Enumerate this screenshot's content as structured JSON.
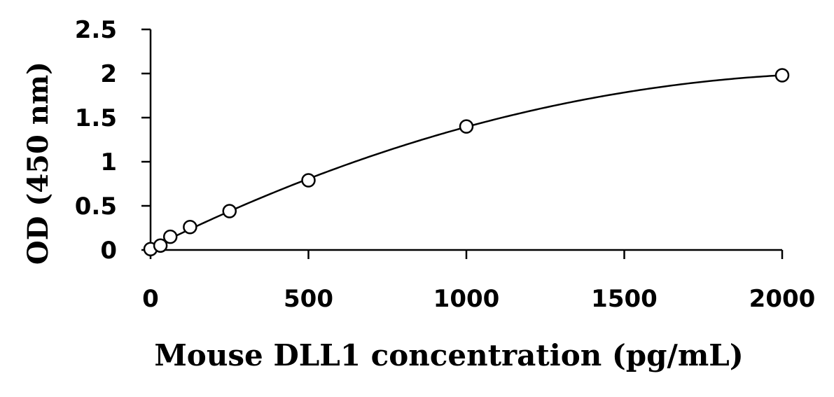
{
  "chart_data": {
    "type": "scatter",
    "title": "",
    "xlabel": "Mouse DLL1 concentration (pg/mL)",
    "ylabel": "OD (450 nm)",
    "xlim": [
      0,
      2000
    ],
    "ylim": [
      0,
      2.5
    ],
    "x_ticks": [
      0,
      500,
      1000,
      1500,
      2000
    ],
    "x_tick_labels": [
      "0",
      "500",
      "1000",
      "1500",
      "2000"
    ],
    "y_ticks": [
      0,
      0.5,
      1,
      1.5,
      2,
      2.5
    ],
    "y_tick_labels": [
      "0",
      "0.5",
      "1",
      "1.5",
      "2",
      "2.5"
    ],
    "grid": false,
    "legend": "none",
    "marker": "open-circle",
    "fit": "smooth-curve",
    "series": [
      {
        "x": [
          0,
          31.25,
          62.5,
          125,
          250,
          500,
          1000,
          2000
        ],
        "y": [
          0.01,
          0.05,
          0.15,
          0.26,
          0.44,
          0.79,
          1.4,
          1.98
        ]
      }
    ],
    "colors": {
      "line": "#000000",
      "marker_fill": "#ffffff",
      "background": "#ffffff"
    }
  }
}
